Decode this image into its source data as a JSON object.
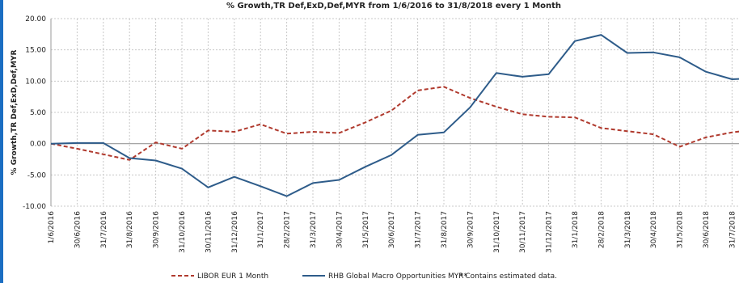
{
  "chart_data": {
    "type": "line",
    "title": "% Growth,TR Def,ExD,Def,MYR from 1/6/2016 to 31/8/2018 every 1 Month",
    "ylabel": "% Growth,TR Def,ExD,Def,MYR",
    "xlabel": "",
    "ylim": [
      -10,
      20
    ],
    "yticks": [
      "20.00",
      "15.00",
      "10.00",
      "5.00",
      "0.00",
      "-5.00",
      "-10.00"
    ],
    "categories": [
      "1/6/2016",
      "30/6/2016",
      "31/7/2016",
      "31/8/2016",
      "30/9/2016",
      "31/10/2016",
      "30/11/2016",
      "31/12/2016",
      "31/1/2017",
      "28/2/2017",
      "31/3/2017",
      "30/4/2017",
      "31/5/2017",
      "30/6/2017",
      "31/7/2017",
      "31/8/2017",
      "30/9/2017",
      "31/10/2017",
      "30/11/2017",
      "31/12/2017",
      "31/1/2018",
      "28/2/2018",
      "31/3/2018",
      "30/4/2018",
      "31/5/2018",
      "30/6/2018",
      "31/7/2018",
      "31/8/2018"
    ],
    "grid": true,
    "legend_position": "bottom",
    "series": [
      {
        "name": "LIBOR EUR 1 Month",
        "color": "#b03a2e",
        "style": "dashed",
        "values": [
          0.0,
          -0.8,
          -1.7,
          -2.6,
          0.2,
          -0.8,
          2.1,
          1.9,
          3.1,
          1.6,
          1.9,
          1.7,
          3.4,
          5.3,
          8.5,
          9.1,
          7.3,
          5.9,
          4.7,
          4.3,
          4.2,
          2.5,
          2.0,
          1.5,
          -0.5,
          1.0,
          1.8,
          2.3
        ]
      },
      {
        "name": "RHB Global Macro Opportunities MYR*",
        "color": "#2e5c8a",
        "style": "solid",
        "values": [
          0.0,
          0.1,
          0.1,
          -2.3,
          -2.7,
          -4.0,
          -7.0,
          -5.3,
          -6.8,
          -8.4,
          -6.3,
          -5.8,
          -3.7,
          -1.8,
          1.4,
          1.8,
          5.8,
          11.3,
          10.7,
          11.1,
          16.4,
          17.4,
          14.5,
          14.6,
          13.8,
          11.5,
          10.3,
          10.5
        ]
      }
    ],
    "legend_note": "*  Contains estimated data."
  }
}
